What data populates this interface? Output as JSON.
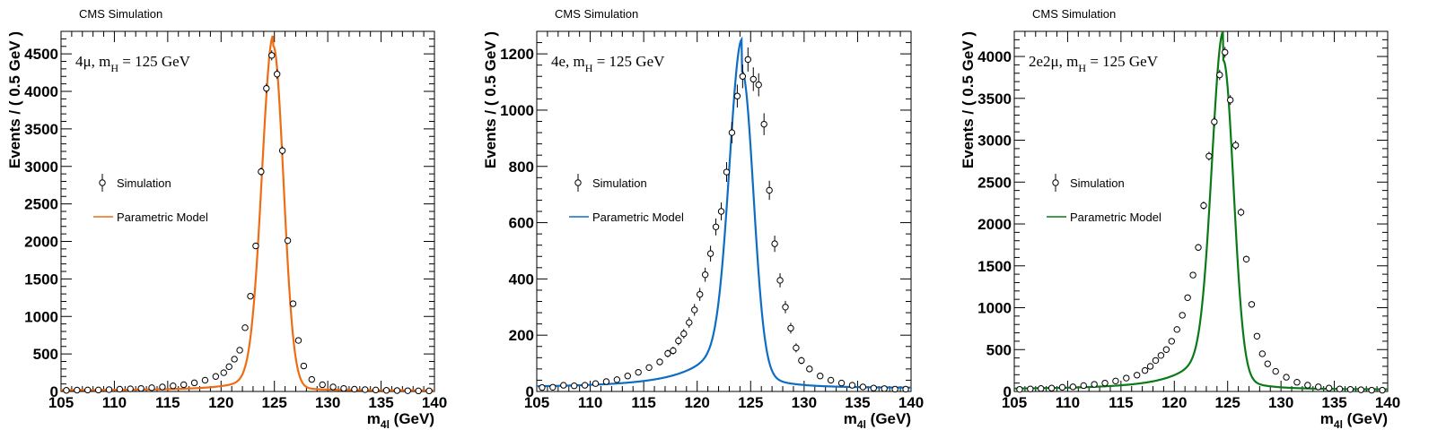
{
  "chart_data": [
    {
      "type": "line",
      "header": "CMS Simulation",
      "annotation": {
        "main": "4μ, m",
        "sub": "H",
        "rest": " = 125 GeV"
      },
      "xlabel": {
        "main": "m",
        "sub": "4l",
        "rest": " (GeV)"
      },
      "ylabel": "Events / ( 0.5 GeV )",
      "xlim": [
        105,
        140
      ],
      "ylim": [
        0,
        4800
      ],
      "xticks": [
        105,
        110,
        115,
        120,
        125,
        130,
        135,
        140
      ],
      "yticks": [
        0,
        500,
        1000,
        1500,
        2000,
        2500,
        3000,
        3500,
        4000,
        4500
      ],
      "legend": {
        "position": "middle-left",
        "entries": [
          "Simulation",
          "Parametric Model"
        ]
      },
      "color": "#ee6d13",
      "series": [
        {
          "name": "Simulation",
          "kind": "points",
          "x": [
            105.5,
            106.5,
            107.5,
            108.5,
            109.5,
            110.5,
            111.5,
            112.5,
            113.5,
            114.5,
            115.5,
            116.5,
            117.5,
            118.5,
            119.5,
            120.25,
            120.75,
            121.25,
            121.75,
            122.25,
            122.75,
            123.25,
            123.75,
            124.25,
            124.75,
            125.25,
            125.75,
            126.25,
            126.75,
            127.25,
            127.75,
            128.5,
            129.5,
            130.5,
            131.5,
            132.5,
            133.5,
            134.5,
            135.5,
            136.5,
            137.5,
            138.5,
            139.5
          ],
          "y": [
            15,
            18,
            20,
            20,
            25,
            30,
            35,
            40,
            50,
            60,
            75,
            90,
            115,
            150,
            200,
            250,
            330,
            430,
            550,
            850,
            1270,
            1940,
            2930,
            4040,
            4480,
            4230,
            3210,
            2010,
            1170,
            680,
            340,
            160,
            90,
            60,
            40,
            30,
            25,
            20,
            15,
            12,
            10,
            8,
            8
          ],
          "err": [
            4,
            4,
            5,
            5,
            5,
            6,
            6,
            7,
            7,
            8,
            9,
            10,
            11,
            12,
            14,
            16,
            18,
            21,
            24,
            29,
            36,
            44,
            54,
            64,
            67,
            65,
            57,
            45,
            34,
            26,
            18,
            13,
            10,
            8,
            6,
            6,
            5,
            5,
            4,
            4,
            3,
            3,
            3
          ]
        },
        {
          "name": "Parametric Model",
          "kind": "curve",
          "model": {
            "amplitude": 4470,
            "mean": 124.9,
            "sigma_left": 1.05,
            "sigma_right": 0.95,
            "tail_left_amp": 260,
            "tail_left_width": 2.6,
            "tail_right_amp": 120,
            "tail_right_width": 1.6,
            "baseline": 14
          }
        }
      ]
    },
    {
      "type": "line",
      "header": "CMS Simulation",
      "annotation": {
        "main": "4e, m",
        "sub": "H",
        "rest": " = 125 GeV"
      },
      "xlabel": {
        "main": "m",
        "sub": "4l",
        "rest": " (GeV)"
      },
      "ylabel": "Events / ( 0.5 GeV )",
      "xlim": [
        105,
        140
      ],
      "ylim": [
        0,
        1280
      ],
      "xticks": [
        105,
        110,
        115,
        120,
        125,
        130,
        135,
        140
      ],
      "yticks": [
        0,
        200,
        400,
        600,
        800,
        1000,
        1200
      ],
      "legend": {
        "position": "middle-left",
        "entries": [
          "Simulation",
          "Parametric Model"
        ]
      },
      "color": "#0d6dc4",
      "series": [
        {
          "name": "Simulation",
          "kind": "points",
          "x": [
            105.5,
            106.5,
            107.5,
            108.5,
            109.5,
            110.5,
            111.5,
            112.5,
            113.5,
            114.5,
            115.5,
            116.5,
            117.25,
            117.75,
            118.25,
            118.75,
            119.25,
            119.75,
            120.25,
            120.75,
            121.25,
            121.75,
            122.25,
            122.75,
            123.25,
            123.75,
            124.25,
            124.75,
            125.25,
            125.75,
            126.25,
            126.75,
            127.25,
            127.75,
            128.25,
            128.75,
            129.25,
            129.75,
            130.5,
            131.5,
            132.5,
            133.5,
            134.5,
            135.5,
            136.5,
            137.5,
            138.5,
            139.5
          ],
          "y": [
            14,
            15,
            22,
            20,
            22,
            28,
            35,
            42,
            55,
            68,
            85,
            105,
            135,
            145,
            180,
            205,
            245,
            290,
            345,
            415,
            490,
            585,
            640,
            780,
            920,
            1050,
            1120,
            1180,
            1110,
            1090,
            950,
            715,
            525,
            395,
            300,
            225,
            155,
            110,
            80,
            55,
            40,
            30,
            22,
            16,
            12,
            10,
            8,
            8
          ],
          "err": [
            5,
            5,
            6,
            6,
            6,
            7,
            7,
            8,
            9,
            10,
            11,
            12,
            14,
            14,
            16,
            17,
            19,
            21,
            23,
            25,
            28,
            30,
            32,
            35,
            38,
            41,
            42,
            43,
            42,
            41,
            39,
            34,
            29,
            25,
            22,
            19,
            16,
            13,
            11,
            9,
            8,
            7,
            6,
            5,
            4,
            4,
            4,
            4
          ]
        },
        {
          "name": "Parametric Model",
          "kind": "curve",
          "model": {
            "amplitude": 1050,
            "mean": 124.2,
            "sigma_left": 1.15,
            "sigma_right": 1.05,
            "tail_left_amp": 190,
            "tail_left_width": 3.6,
            "tail_right_amp": 75,
            "tail_right_width": 2.4,
            "baseline": 12
          }
        }
      ]
    },
    {
      "type": "line",
      "header": "CMS Simulation",
      "annotation": {
        "main": "2e2μ, m",
        "sub": "H",
        "rest": " = 125 GeV"
      },
      "xlabel": {
        "main": "m",
        "sub": "4l",
        "rest": " (GeV)"
      },
      "ylabel": "Events / ( 0.5 GeV )",
      "xlim": [
        105,
        140
      ],
      "ylim": [
        0,
        4300
      ],
      "xticks": [
        105,
        110,
        115,
        120,
        125,
        130,
        135,
        140
      ],
      "yticks": [
        0,
        500,
        1000,
        1500,
        2000,
        2500,
        3000,
        3500,
        4000
      ],
      "legend": {
        "position": "middle-left",
        "entries": [
          "Simulation",
          "Parametric Model"
        ]
      },
      "color": "#0a7a16",
      "series": [
        {
          "name": "Simulation",
          "kind": "points",
          "x": [
            105.5,
            106.5,
            107.5,
            108.5,
            109.5,
            110.5,
            111.5,
            112.5,
            113.5,
            114.5,
            115.5,
            116.5,
            117.25,
            117.75,
            118.25,
            118.75,
            119.25,
            119.75,
            120.25,
            120.75,
            121.25,
            121.75,
            122.25,
            122.75,
            123.25,
            123.75,
            124.25,
            124.75,
            125.25,
            125.75,
            126.25,
            126.75,
            127.25,
            127.75,
            128.25,
            128.75,
            129.5,
            130.5,
            131.5,
            132.5,
            133.5,
            134.5,
            135.5,
            136.5,
            137.5,
            138.5,
            139.5
          ],
          "y": [
            25,
            30,
            35,
            40,
            50,
            55,
            70,
            85,
            100,
            125,
            160,
            195,
            250,
            300,
            370,
            430,
            500,
            600,
            740,
            910,
            1120,
            1390,
            1720,
            2220,
            2810,
            3220,
            3780,
            4050,
            3480,
            2940,
            2140,
            1580,
            1040,
            660,
            450,
            330,
            240,
            170,
            110,
            75,
            55,
            40,
            30,
            25,
            20,
            15,
            15
          ],
          "err": [
            5,
            6,
            6,
            7,
            7,
            8,
            9,
            10,
            10,
            12,
            13,
            14,
            16,
            17,
            19,
            21,
            22,
            25,
            27,
            30,
            34,
            37,
            42,
            47,
            53,
            57,
            62,
            64,
            59,
            54,
            46,
            40,
            32,
            26,
            21,
            18,
            16,
            13,
            11,
            9,
            8,
            7,
            6,
            5,
            5,
            4,
            4
          ]
        },
        {
          "name": "Parametric Model",
          "kind": "curve",
          "model": {
            "amplitude": 3700,
            "mean": 124.6,
            "sigma_left": 1.05,
            "sigma_right": 0.95,
            "tail_left_amp": 580,
            "tail_left_width": 3.0,
            "tail_right_amp": 230,
            "tail_right_width": 2.0,
            "baseline": 22
          }
        }
      ]
    }
  ]
}
